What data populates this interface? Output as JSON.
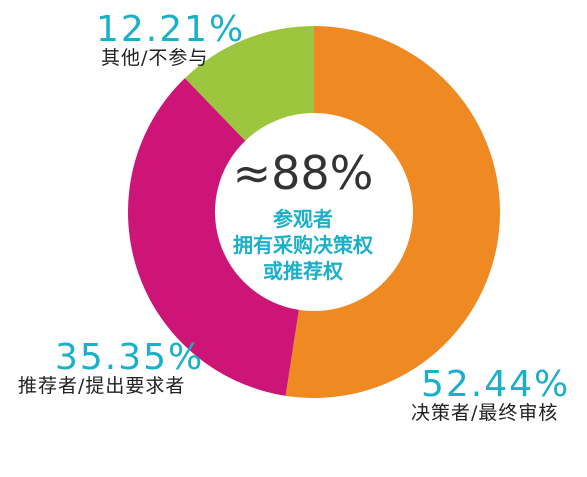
{
  "chart_data": {
    "type": "pie",
    "style": "donut",
    "slices": [
      {
        "value": 52.44,
        "value_label": "52.44%",
        "label": "决策者/最终审核",
        "color": "#ef8a23"
      },
      {
        "value": 35.35,
        "value_label": "35.35%",
        "label": "推荐者/提出要求者",
        "color": "#cc1577"
      },
      {
        "value": 12.21,
        "value_label": "12.21%",
        "label": "其他/不参与",
        "color": "#9dc63f"
      }
    ],
    "start_angle_deg": 0,
    "direction": "clockwise",
    "center": {
      "headline": "≈88%",
      "lines": [
        "参观者",
        "拥有采购决策权",
        "或推荐权"
      ]
    }
  },
  "colors": {
    "value_text": "#1bb0c8",
    "label_text": "#222222",
    "center_headline": "#333333",
    "center_text": "#1bb0c8"
  }
}
